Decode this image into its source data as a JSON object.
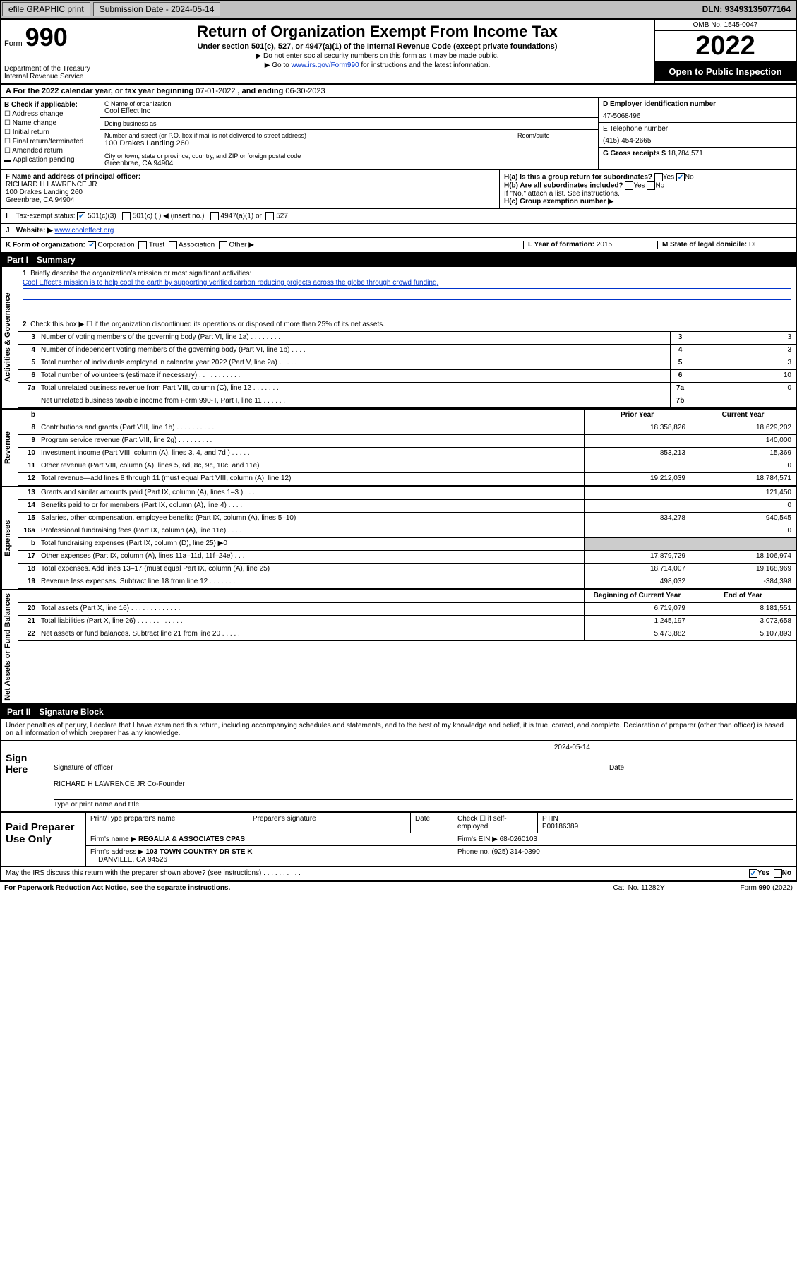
{
  "topbar": {
    "efile": "efile GRAPHIC print",
    "submission_label": "Submission Date - 2024-05-14",
    "dln": "DLN: 93493135077164"
  },
  "header": {
    "form_word": "Form",
    "form_num": "990",
    "dept": "Department of the Treasury\nInternal Revenue Service",
    "title": "Return of Organization Exempt From Income Tax",
    "sub": "Under section 501(c), 527, or 4947(a)(1) of the Internal Revenue Code (except private foundations)",
    "note1": "▶ Do not enter social security numbers on this form as it may be made public.",
    "note2_pre": "▶ Go to ",
    "note2_link": "www.irs.gov/Form990",
    "note2_post": " for instructions and the latest information.",
    "omb": "OMB No. 1545-0047",
    "year": "2022",
    "open": "Open to Public Inspection"
  },
  "line_a": {
    "text_pre": "A For the 2022 calendar year, or tax year beginning ",
    "begin": "07-01-2022",
    "mid": " , and ending ",
    "end": "06-30-2023"
  },
  "col_b": {
    "label": "B Check if applicable:",
    "opts": [
      "Address change",
      "Name change",
      "Initial return",
      "Final return/terminated",
      "Amended return",
      "Application pending"
    ]
  },
  "col_c": {
    "name_lbl": "C Name of organization",
    "name": "Cool Effect Inc",
    "dba_lbl": "Doing business as",
    "dba": "",
    "street_lbl": "Number and street (or P.O. box if mail is not delivered to street address)",
    "room_lbl": "Room/suite",
    "street": "100 Drakes Landing 260",
    "city_lbl": "City or town, state or province, country, and ZIP or foreign postal code",
    "city": "Greenbrae, CA  94904"
  },
  "col_de": {
    "d_lbl": "D Employer identification number",
    "ein": "47-5068496",
    "e_lbl": "E Telephone number",
    "phone": "(415) 454-2665",
    "g_lbl": "G Gross receipts $",
    "gross": "18,784,571"
  },
  "block_f": {
    "f_lbl": "F Name and address of principal officer:",
    "f_name": "RICHARD H LAWRENCE JR",
    "f_addr1": "100 Drakes Landing 260",
    "f_addr2": "Greenbrae, CA  94904"
  },
  "block_h": {
    "ha": "H(a)  Is this a group return for subordinates?",
    "ha_yes": "Yes",
    "ha_no": "No",
    "hb": "H(b)  Are all subordinates included?",
    "hb_yes": "Yes",
    "hb_no": "No",
    "hb_note": "If \"No,\" attach a list. See instructions.",
    "hc": "H(c)  Group exemption number ▶"
  },
  "row_i": {
    "lbl": "Tax-exempt status:",
    "o1": "501(c)(3)",
    "o2": "501(c) (  ) ◀ (insert no.)",
    "o3": "4947(a)(1) or",
    "o4": "527"
  },
  "row_j": {
    "lbl": "Website: ▶",
    "val": "www.cooleffect.org"
  },
  "row_k": {
    "lbl": "K Form of organization:",
    "o1": "Corporation",
    "o2": "Trust",
    "o3": "Association",
    "o4": "Other ▶",
    "l_lbl": "L Year of formation:",
    "l_val": "2015",
    "m_lbl": "M State of legal domicile:",
    "m_val": "DE"
  },
  "part1": {
    "hdr_num": "Part I",
    "hdr_title": "Summary",
    "q1_lbl": "1",
    "q1_txt": "Briefly describe the organization's mission or most significant activities:",
    "q1_mission": "Cool Effect's mission is to help cool the earth by supporting verified carbon reducing projects across the globe through crowd funding.",
    "q2_lbl": "2",
    "q2_txt": "Check this box ▶ ☐  if the organization discontinued its operations or disposed of more than 25% of its net assets.",
    "rows_gov": [
      {
        "n": "3",
        "t": "Number of voting members of the governing body (Part VI, line 1a)  .   .   .   .   .   .   .   .",
        "b": "3",
        "v": "3"
      },
      {
        "n": "4",
        "t": "Number of independent voting members of the governing body (Part VI, line 1b)  .   .   .   .",
        "b": "4",
        "v": "3"
      },
      {
        "n": "5",
        "t": "Total number of individuals employed in calendar year 2022 (Part V, line 2a)  .   .   .   .   .",
        "b": "5",
        "v": "3"
      },
      {
        "n": "6",
        "t": "Total number of volunteers (estimate if necessary)  .   .   .   .   .   .   .   .   .   .   .",
        "b": "6",
        "v": "10"
      },
      {
        "n": "7a",
        "t": "Total unrelated business revenue from Part VIII, column (C), line 12  .   .   .   .   .   .   .",
        "b": "7a",
        "v": "0"
      },
      {
        "n": "",
        "t": "Net unrelated business taxable income from Form 990-T, Part I, line 11  .   .   .   .   .   .",
        "b": "7b",
        "v": ""
      }
    ],
    "col_hdr_prior": "Prior Year",
    "col_hdr_curr": "Current Year",
    "rows_rev": [
      {
        "n": "8",
        "t": "Contributions and grants (Part VIII, line 1h)  .   .   .   .   .   .   .   .   .   .",
        "p": "18,358,826",
        "c": "18,629,202"
      },
      {
        "n": "9",
        "t": "Program service revenue (Part VIII, line 2g)  .   .   .   .   .   .   .   .   .   .",
        "p": "",
        "c": "140,000"
      },
      {
        "n": "10",
        "t": "Investment income (Part VIII, column (A), lines 3, 4, and 7d )  .   .   .   .   .",
        "p": "853,213",
        "c": "15,369"
      },
      {
        "n": "11",
        "t": "Other revenue (Part VIII, column (A), lines 5, 6d, 8c, 9c, 10c, and 11e)",
        "p": "",
        "c": "0"
      },
      {
        "n": "12",
        "t": "Total revenue—add lines 8 through 11 (must equal Part VIII, column (A), line 12)",
        "p": "19,212,039",
        "c": "18,784,571"
      }
    ],
    "rows_exp": [
      {
        "n": "13",
        "t": "Grants and similar amounts paid (Part IX, column (A), lines 1–3 )  .   .   .",
        "p": "",
        "c": "121,450"
      },
      {
        "n": "14",
        "t": "Benefits paid to or for members (Part IX, column (A), line 4)  .   .   .   .",
        "p": "",
        "c": "0"
      },
      {
        "n": "15",
        "t": "Salaries, other compensation, employee benefits (Part IX, column (A), lines 5–10)",
        "p": "834,278",
        "c": "940,545"
      },
      {
        "n": "16a",
        "t": "Professional fundraising fees (Part IX, column (A), line 11e)  .   .   .   .",
        "p": "",
        "c": "0"
      },
      {
        "n": "b",
        "t": "Total fundraising expenses (Part IX, column (D), line 25) ▶0",
        "p": "grey",
        "c": "grey"
      },
      {
        "n": "17",
        "t": "Other expenses (Part IX, column (A), lines 11a–11d, 11f–24e)  .   .   .",
        "p": "17,879,729",
        "c": "18,106,974"
      },
      {
        "n": "18",
        "t": "Total expenses. Add lines 13–17 (must equal Part IX, column (A), line 25)",
        "p": "18,714,007",
        "c": "19,168,969"
      },
      {
        "n": "19",
        "t": "Revenue less expenses. Subtract line 18 from line 12  .   .   .   .   .   .   .",
        "p": "498,032",
        "c": "-384,398"
      }
    ],
    "col_hdr_beg": "Beginning of Current Year",
    "col_hdr_end": "End of Year",
    "rows_net": [
      {
        "n": "20",
        "t": "Total assets (Part X, line 16)  .   .   .   .   .   .   .   .   .   .   .   .   .",
        "p": "6,719,079",
        "c": "8,181,551"
      },
      {
        "n": "21",
        "t": "Total liabilities (Part X, line 26)  .   .   .   .   .   .   .   .   .   .   .   .",
        "p": "1,245,197",
        "c": "3,073,658"
      },
      {
        "n": "22",
        "t": "Net assets or fund balances. Subtract line 21 from line 20  .   .   .   .   .",
        "p": "5,473,882",
        "c": "5,107,893"
      }
    ]
  },
  "part2": {
    "hdr_num": "Part II",
    "hdr_title": "Signature Block",
    "intro": "Under penalties of perjury, I declare that I have examined this return, including accompanying schedules and statements, and to the best of my knowledge and belief, it is true, correct, and complete. Declaration of preparer (other than officer) is based on all information of which preparer has any knowledge."
  },
  "sign": {
    "label": "Sign Here",
    "sig_lbl": "Signature of officer",
    "date_lbl": "Date",
    "date": "2024-05-14",
    "name": "RICHARD H LAWRENCE JR Co-Founder",
    "name_lbl": "Type or print name and title"
  },
  "paid": {
    "label": "Paid Preparer Use Only",
    "h1": "Print/Type preparer's name",
    "h2": "Preparer's signature",
    "h3": "Date",
    "h4_pre": "Check ☐ if self-employed",
    "h5": "PTIN",
    "ptin": "P00186389",
    "firm_name_lbl": "Firm's name    ▶",
    "firm_name": "REGALIA & ASSOCIATES CPAS",
    "firm_ein_lbl": "Firm's EIN ▶",
    "firm_ein": "68-0260103",
    "firm_addr_lbl": "Firm's address ▶",
    "firm_addr1": "103 TOWN COUNTRY DR STE K",
    "firm_addr2": "DANVILLE, CA  94526",
    "phone_lbl": "Phone no.",
    "phone": "(925) 314-0390"
  },
  "footer": {
    "discuss": "May the IRS discuss this return with the preparer shown above? (see instructions)   .   .   .   .   .   .   .   .   .   .",
    "yes": "Yes",
    "no": "No",
    "paperwork": "For Paperwork Reduction Act Notice, see the separate instructions.",
    "cat": "Cat. No. 11282Y",
    "form": "Form 990 (2022)"
  },
  "vtabs": {
    "gov": "Activities & Governance",
    "rev": "Revenue",
    "exp": "Expenses",
    "net": "Net Assets or Fund Balances"
  }
}
